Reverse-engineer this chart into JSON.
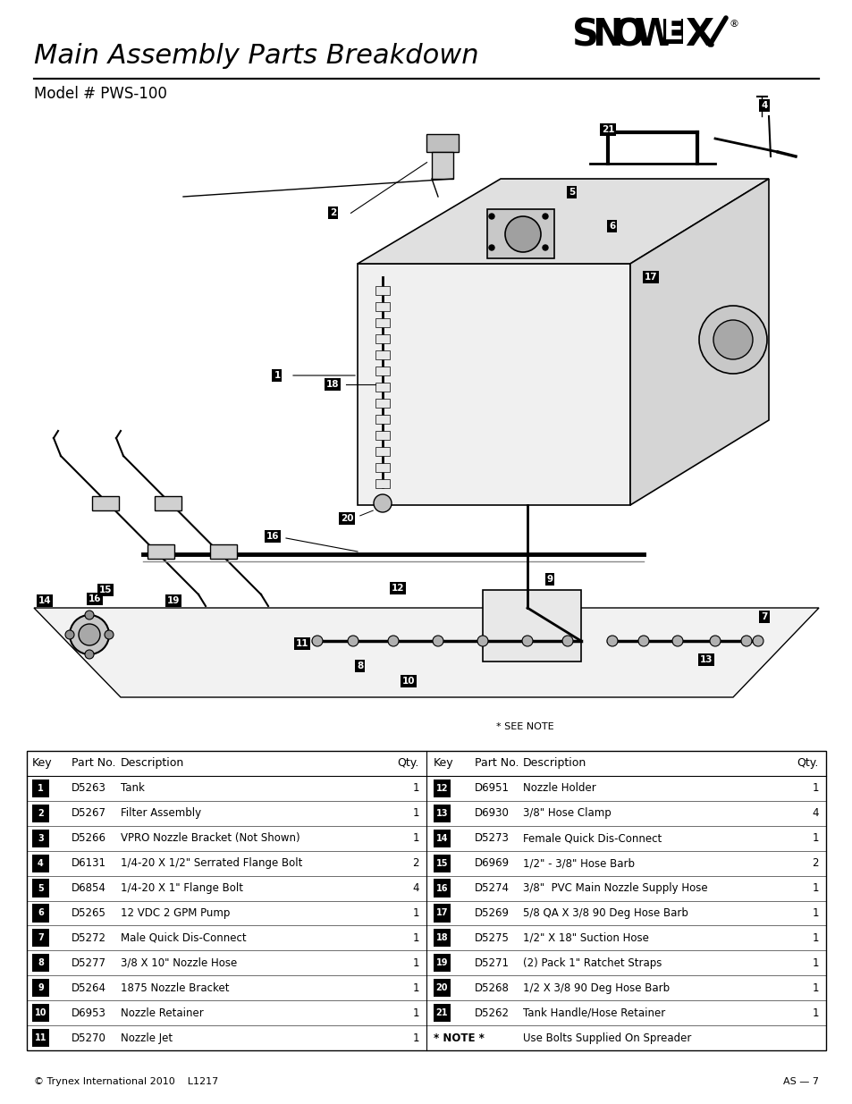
{
  "title": "Main Assembly Parts Breakdown",
  "model": "Model # PWS-100",
  "bg_color": "#ffffff",
  "title_fontsize": 22,
  "model_fontsize": 12,
  "footer_left": "© Trynex International 2010    L1217",
  "footer_right": "AS — 7",
  "table_left": [
    [
      "1",
      "D5263",
      "Tank",
      "1"
    ],
    [
      "2",
      "D5267",
      "Filter Assembly",
      "1"
    ],
    [
      "3",
      "D5266",
      "VPRO Nozzle Bracket (Not Shown)",
      "1"
    ],
    [
      "4",
      "D6131",
      "1/4-20 X 1/2\" Serrated Flange Bolt",
      "2"
    ],
    [
      "5",
      "D6854",
      "1/4-20 X 1\" Flange Bolt",
      "4"
    ],
    [
      "6",
      "D5265",
      "12 VDC 2 GPM Pump",
      "1"
    ],
    [
      "7",
      "D5272",
      "Male Quick Dis-Connect",
      "1"
    ],
    [
      "8",
      "D5277",
      "3/8 X 10\" Nozzle Hose",
      "1"
    ],
    [
      "9",
      "D5264",
      "1875 Nozzle Bracket",
      "1"
    ],
    [
      "10",
      "D6953",
      "Nozzle Retainer",
      "1"
    ],
    [
      "11",
      "D5270",
      "Nozzle Jet",
      "1"
    ]
  ],
  "table_right": [
    [
      "12",
      "D6951",
      "Nozzle Holder",
      "1"
    ],
    [
      "13",
      "D6930",
      "3/8\" Hose Clamp",
      "4"
    ],
    [
      "14",
      "D5273",
      "Female Quick Dis-Connect",
      "1"
    ],
    [
      "15",
      "D6969",
      "1/2\" - 3/8\" Hose Barb",
      "2"
    ],
    [
      "16",
      "D5274",
      "3/8\"  PVC Main Nozzle Supply Hose",
      "1"
    ],
    [
      "17",
      "D5269",
      "5/8 QA X 3/8 90 Deg Hose Barb",
      "1"
    ],
    [
      "18",
      "D5275",
      "1/2\" X 18\" Suction Hose",
      "1"
    ],
    [
      "19",
      "D5271",
      "(2) Pack 1\" Ratchet Straps",
      "1"
    ],
    [
      "20",
      "D5268",
      "1/2 X 3/8 90 Deg Hose Barb",
      "1"
    ],
    [
      "21",
      "D5262",
      "Tank Handle/Hose Retainer",
      "1"
    ],
    [
      "* NOTE *",
      "",
      "Use Bolts Supplied On Spreader",
      ""
    ]
  ],
  "see_note_text": "* SEE NOTE"
}
